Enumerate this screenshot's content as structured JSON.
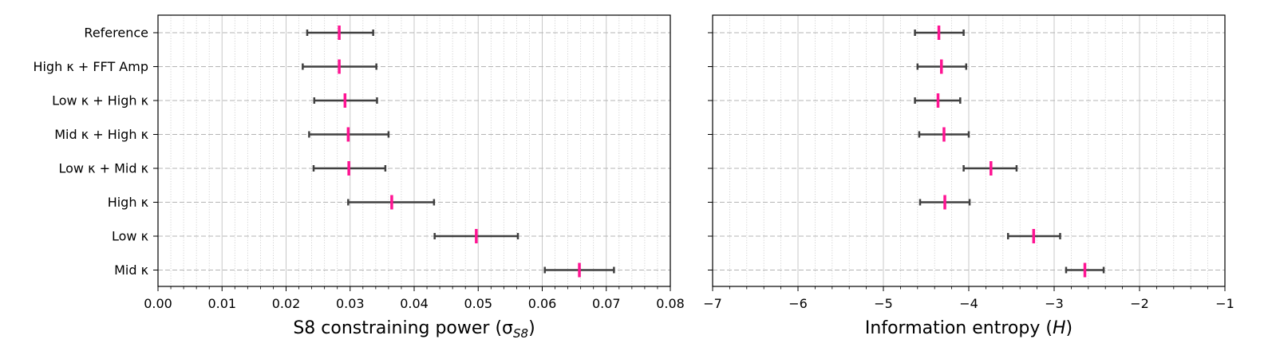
{
  "chart_data": [
    {
      "type": "errorbar",
      "categories": [
        "Reference",
        "High κ + FFT Amp",
        "Low κ + High κ",
        "Mid κ + High κ",
        "Low κ + Mid κ",
        "High κ",
        "Low κ",
        "Mid κ"
      ],
      "values": [
        0.0283,
        0.0283,
        0.0292,
        0.0297,
        0.0298,
        0.0365,
        0.0497,
        0.0658
      ],
      "err_low": [
        0.0233,
        0.0226,
        0.0244,
        0.0236,
        0.0243,
        0.0297,
        0.0432,
        0.0604
      ],
      "err_high": [
        0.0336,
        0.0341,
        0.0342,
        0.036,
        0.0355,
        0.0431,
        0.0562,
        0.0712
      ],
      "xlabel": "S8 constraining power (σ",
      "xlabel_sub": "S8",
      "xlabel_end": ")",
      "xlim": [
        0.0,
        0.08
      ],
      "xticks": [
        0.0,
        0.01,
        0.02,
        0.03,
        0.04,
        0.05,
        0.06,
        0.07,
        0.08
      ],
      "xtick_labels": [
        "0.00",
        "0.01",
        "0.02",
        "0.03",
        "0.04",
        "0.05",
        "0.06",
        "0.07",
        "0.08"
      ],
      "grid": true
    },
    {
      "type": "errorbar",
      "categories": [
        "Reference",
        "High κ + FFT Amp",
        "Low κ + High κ",
        "Mid κ + High κ",
        "Low κ + Mid κ",
        "High κ",
        "Low κ",
        "Mid κ"
      ],
      "values": [
        -4.35,
        -4.32,
        -4.36,
        -4.29,
        -3.74,
        -4.28,
        -3.24,
        -2.64
      ],
      "err_low": [
        -4.63,
        -4.6,
        -4.63,
        -4.58,
        -4.06,
        -4.57,
        -3.54,
        -2.86
      ],
      "err_high": [
        -4.06,
        -4.03,
        -4.1,
        -4.0,
        -3.44,
        -3.99,
        -2.93,
        -2.42
      ],
      "xlabel": "Information entropy (",
      "xlabel_var": "H",
      "xlabel_end": ")",
      "xlim": [
        -7,
        -1
      ],
      "xticks": [
        -7,
        -6,
        -5,
        -4,
        -3,
        -2,
        -1
      ],
      "xtick_labels": [
        "−7",
        "−6",
        "−5",
        "−4",
        "−3",
        "−2",
        "−1"
      ],
      "grid": true
    }
  ],
  "colors": {
    "marker": "#ff1493",
    "errorbar": "#404040",
    "major_grid": "#c8c8c8",
    "minor_grid": "#c8c8c8",
    "hgrid": "#b4b4b4"
  }
}
